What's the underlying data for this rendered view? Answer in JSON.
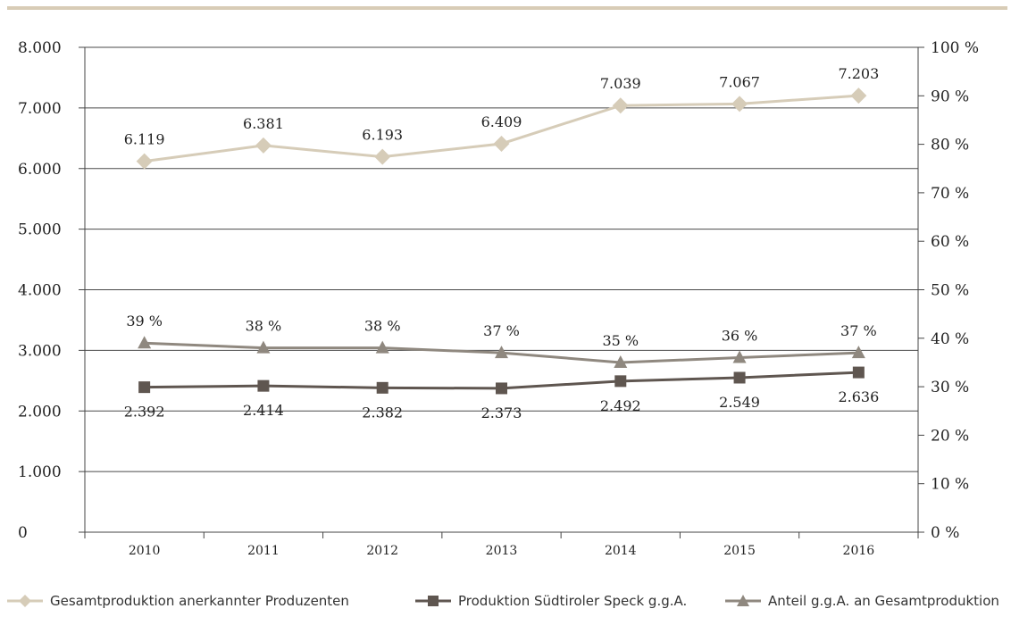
{
  "chart_data": {
    "type": "line",
    "categories": [
      "2010",
      "2011",
      "2012",
      "2013",
      "2014",
      "2015",
      "2016"
    ],
    "y_left": {
      "ticks": [
        "0",
        "1.000",
        "2.000",
        "3.000",
        "4.000",
        "5.000",
        "6.000",
        "7.000",
        "8.000"
      ],
      "range": [
        0,
        8000
      ]
    },
    "y_right": {
      "ticks": [
        "0 %",
        "10 %",
        "20 %",
        "30 %",
        "40 %",
        "50 %",
        "60 %",
        "70 %",
        "80 %",
        "90 %",
        "100 %"
      ],
      "range": [
        0,
        100
      ]
    },
    "grid": true,
    "legend_position": "bottom",
    "series": [
      {
        "name": "Gesamtproduktion anerkannter Produzenten",
        "axis": "left",
        "color": "#d6ccb8",
        "marker": "diamond",
        "values": [
          6119,
          6381,
          6193,
          6409,
          7039,
          7067,
          7203
        ],
        "labels": [
          "6.119",
          "6.381",
          "6.193",
          "6.409",
          "7.039",
          "7.067",
          "7.203"
        ]
      },
      {
        "name": "Produktion Südtiroler Speck g.g.A.",
        "axis": "left",
        "color": "#5f5650",
        "marker": "square",
        "values": [
          2392,
          2414,
          2382,
          2373,
          2492,
          2549,
          2636
        ],
        "labels": [
          "2.392",
          "2.414",
          "2.382",
          "2.373",
          "2.492",
          "2.549",
          "2.636"
        ]
      },
      {
        "name": "Anteil g.g.A. an Gesamtproduktion",
        "axis": "right",
        "color": "#8f887f",
        "marker": "triangle",
        "values": [
          39,
          38,
          38,
          37,
          35,
          36,
          37
        ],
        "labels": [
          "39 %",
          "38 %",
          "38 %",
          "37 %",
          "35 %",
          "36 %",
          "37 %"
        ]
      }
    ]
  }
}
